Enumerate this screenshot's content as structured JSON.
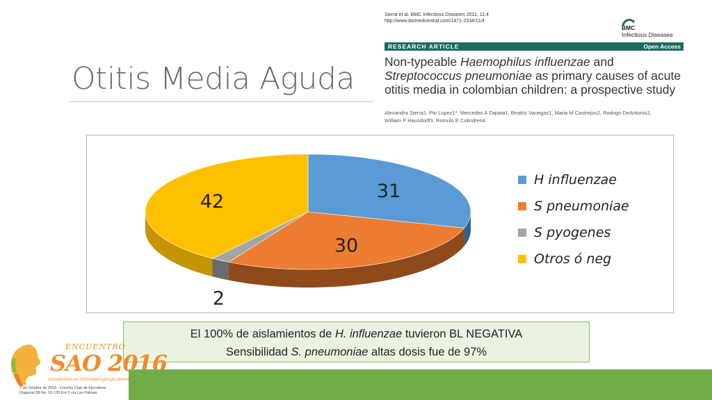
{
  "slide": {
    "title": "Otitis Media Aguda"
  },
  "paper": {
    "citation_line1": "Sierra et al. BMC Infectious Diseases 2011, 11:4",
    "citation_line2": "http://www.biomedcentral.com/1471-2334/11/4",
    "journal_brand": "BMC",
    "journal_name": "Infectious Diseases",
    "section": "RESEARCH ARTICLE",
    "access": "Open Access",
    "title_plain1": "Non-typeable ",
    "title_italic1": "Haemophilus influenzae",
    "title_plain2": " and",
    "title_italic2": "Streptococcus pneumoniae",
    "title_plain3": " as primary causes of acute otitis media in colombian children: a prospective study",
    "authors": "Alexandra Sierra1, Pio Lopez1*, Mercedes A Zapata1, Beatriz Vanegas1, Maria M Castrejon2, Rodrigo DeAntonio2,\nWilliam P Hausdorff3, Romulo E Colindres4"
  },
  "chart_data": {
    "type": "pie",
    "categories": [
      "H influenzae",
      "S pneumoniae",
      "S pyogenes",
      "Otros ó neg"
    ],
    "values": [
      31,
      30,
      2,
      42
    ],
    "colors": [
      "#5b9bd5",
      "#ed7d31",
      "#a5a5a5",
      "#ffc000"
    ],
    "side_colors": [
      "#2e5f8f",
      "#8e4a1b",
      "#6a6a6a",
      "#c59400"
    ],
    "data_labels": [
      "31",
      "30",
      "2",
      "42"
    ],
    "legend_placement": "right"
  },
  "note": {
    "line1_a": "El 100% de aislamientos de ",
    "line1_b": "H. influenzae",
    "line1_c": " tuvieron BL NEGATIVA",
    "line2_a": "Sensibilidad ",
    "line2_b": "S. pneumoniae",
    "line2_c": " altas dosis fue de 97%"
  },
  "logo": {
    "encuentro": "ENCUENTRO",
    "main": "SAO 2016",
    "sub": "Actualización en Otorrinolaringología pediátrica",
    "info": "7 de Octubre de 2016 - Country Club de Ejecutivos\nDiagonal 28 No. 16-129 Km 5 vía Las Palmas"
  },
  "colors": {
    "accent_green": "#70ad47",
    "note_border": "#86bd52",
    "logo_orange": "#ef8c2e"
  }
}
